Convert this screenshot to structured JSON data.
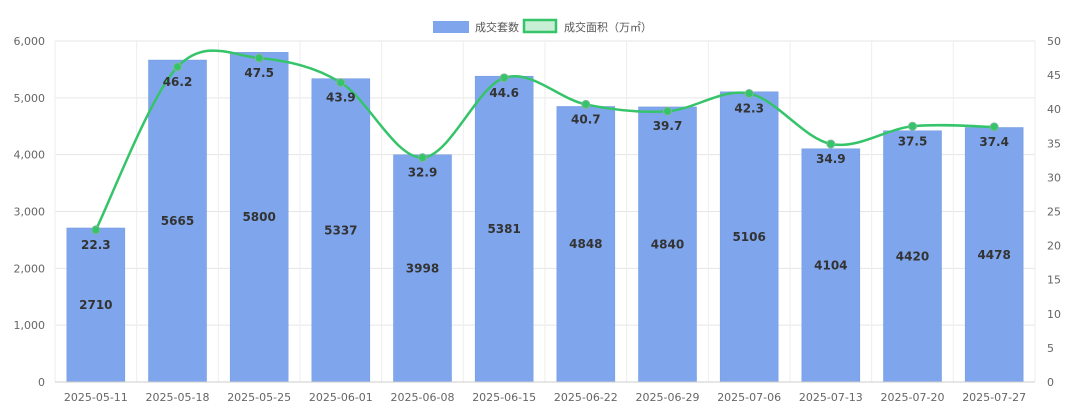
{
  "chart_data": {
    "type": "bar",
    "categories": [
      "2025-05-11",
      "2025-05-18",
      "2025-05-25",
      "2025-06-01",
      "2025-06-08",
      "2025-06-15",
      "2025-06-22",
      "2025-06-29",
      "2025-07-06",
      "2025-07-13",
      "2025-07-20",
      "2025-07-27"
    ],
    "series": [
      {
        "name": "成交套数",
        "type": "bar",
        "axis": "left",
        "color": "#7fa6ec",
        "values": [
          2710,
          5665,
          5800,
          5337,
          3998,
          5381,
          4848,
          4840,
          5106,
          4104,
          4420,
          4478
        ]
      },
      {
        "name": "成交面积（万㎡）",
        "type": "line",
        "axis": "right",
        "color": "#35c46a",
        "values": [
          22.3,
          46.2,
          47.5,
          43.9,
          32.9,
          44.6,
          40.7,
          39.7,
          42.3,
          34.9,
          37.5,
          37.4
        ]
      }
    ],
    "y_left": {
      "min": 0,
      "max": 6000,
      "ticks": [
        0,
        1000,
        2000,
        3000,
        4000,
        5000,
        6000
      ],
      "tick_labels": [
        "0",
        "1,000",
        "2,000",
        "3,000",
        "4,000",
        "5,000",
        "6,000"
      ]
    },
    "y_right": {
      "min": 0,
      "max": 50,
      "ticks": [
        0,
        5,
        10,
        15,
        20,
        25,
        30,
        35,
        40,
        45,
        50
      ],
      "tick_labels": [
        "0",
        "5",
        "10",
        "15",
        "20",
        "25",
        "30",
        "35",
        "40",
        "45",
        "50"
      ]
    },
    "grid": true,
    "legend_position": "top-center"
  }
}
